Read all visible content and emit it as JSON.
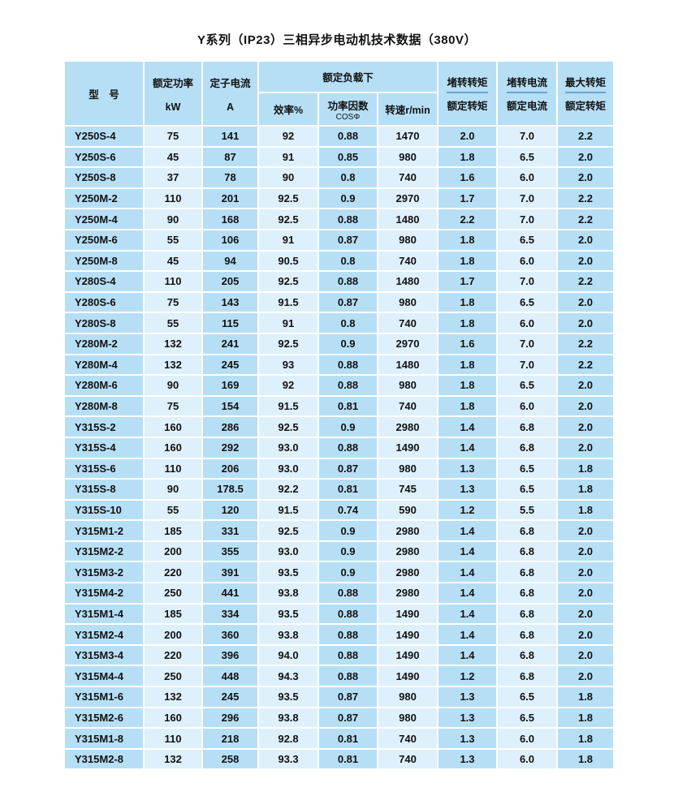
{
  "title": "Y系列（IP23）三相异步电动机技术数据（380V）",
  "header": {
    "model": "型　号",
    "power": "额定功率",
    "power_unit": "kW",
    "current": "定子电流",
    "current_unit": "A",
    "rated_load": "额定负载下",
    "efficiency": "效率%",
    "power_factor": "功率因数",
    "power_factor_sub": "COSΦ",
    "speed": "转速r/min",
    "locked_torque_top": "堵转转矩",
    "locked_torque_bottom": "额定转矩",
    "locked_current_top": "堵转电流",
    "locked_current_bottom": "额定电流",
    "max_torque_top": "最大转矩",
    "max_torque_bottom": "额定转矩"
  },
  "rows": [
    [
      "Y250S-4",
      "75",
      "141",
      "92",
      "0.88",
      "1470",
      "2.0",
      "7.0",
      "2.2"
    ],
    [
      "Y250S-6",
      "45",
      "87",
      "91",
      "0.85",
      "980",
      "1.8",
      "6.5",
      "2.0"
    ],
    [
      "Y250S-8",
      "37",
      "78",
      "90",
      "0.8",
      "740",
      "1.6",
      "6.0",
      "2.0"
    ],
    [
      "Y250M-2",
      "110",
      "201",
      "92.5",
      "0.9",
      "2970",
      "1.7",
      "7.0",
      "2.2"
    ],
    [
      "Y250M-4",
      "90",
      "168",
      "92.5",
      "0.88",
      "1480",
      "2.2",
      "7.0",
      "2.2"
    ],
    [
      "Y250M-6",
      "55",
      "106",
      "91",
      "0.87",
      "980",
      "1.8",
      "6.5",
      "2.0"
    ],
    [
      "Y250M-8",
      "45",
      "94",
      "90.5",
      "0.8",
      "740",
      "1.8",
      "6.0",
      "2.0"
    ],
    [
      "Y280S-4",
      "110",
      "205",
      "92.5",
      "0.88",
      "1480",
      "1.7",
      "7.0",
      "2.2"
    ],
    [
      "Y280S-6",
      "75",
      "143",
      "91.5",
      "0.87",
      "980",
      "1.8",
      "6.5",
      "2.0"
    ],
    [
      "Y280S-8",
      "55",
      "115",
      "91",
      "0.8",
      "740",
      "1.8",
      "6.0",
      "2.0"
    ],
    [
      "Y280M-2",
      "132",
      "241",
      "92.5",
      "0.9",
      "2970",
      "1.6",
      "7.0",
      "2.2"
    ],
    [
      "Y280M-4",
      "132",
      "245",
      "93",
      "0.88",
      "1480",
      "1.8",
      "7.0",
      "2.2"
    ],
    [
      "Y280M-6",
      "90",
      "169",
      "92",
      "0.88",
      "980",
      "1.8",
      "6.5",
      "2.0"
    ],
    [
      "Y280M-8",
      "75",
      "154",
      "91.5",
      "0.81",
      "740",
      "1.8",
      "6.0",
      "2.0"
    ],
    [
      "Y315S-2",
      "160",
      "286",
      "92.5",
      "0.9",
      "2980",
      "1.4",
      "6.8",
      "2.0"
    ],
    [
      "Y315S-4",
      "160",
      "292",
      "93.0",
      "0.88",
      "1490",
      "1.4",
      "6.8",
      "2.0"
    ],
    [
      "Y315S-6",
      "110",
      "206",
      "93.0",
      "0.87",
      "980",
      "1.3",
      "6.5",
      "1.8"
    ],
    [
      "Y315S-8",
      "90",
      "178.5",
      "92.2",
      "0.81",
      "745",
      "1.3",
      "6.5",
      "1.8"
    ],
    [
      "Y315S-10",
      "55",
      "120",
      "91.5",
      "0.74",
      "590",
      "1.2",
      "5.5",
      "1.8"
    ],
    [
      "Y315M1-2",
      "185",
      "331",
      "92.5",
      "0.9",
      "2980",
      "1.4",
      "6.8",
      "2.0"
    ],
    [
      "Y315M2-2",
      "200",
      "355",
      "93.0",
      "0.9",
      "2980",
      "1.4",
      "6.8",
      "2.0"
    ],
    [
      "Y315M3-2",
      "220",
      "391",
      "93.5",
      "0.9",
      "2980",
      "1.4",
      "6.8",
      "2.0"
    ],
    [
      "Y315M4-2",
      "250",
      "441",
      "93.8",
      "0.88",
      "2980",
      "1.4",
      "6.8",
      "2.0"
    ],
    [
      "Y315M1-4",
      "185",
      "334",
      "93.5",
      "0.88",
      "1490",
      "1.4",
      "6.8",
      "2.0"
    ],
    [
      "Y315M2-4",
      "200",
      "360",
      "93.8",
      "0.88",
      "1490",
      "1.4",
      "6.8",
      "2.0"
    ],
    [
      "Y315M3-4",
      "220",
      "396",
      "94.0",
      "0.88",
      "1490",
      "1.4",
      "6.8",
      "2.0"
    ],
    [
      "Y315M4-4",
      "250",
      "448",
      "94.3",
      "0.88",
      "1490",
      "1.2",
      "6.8",
      "2.0"
    ],
    [
      "Y315M1-6",
      "132",
      "245",
      "93.5",
      "0.87",
      "980",
      "1.3",
      "6.5",
      "1.8"
    ],
    [
      "Y315M2-6",
      "160",
      "296",
      "93.8",
      "0.87",
      "980",
      "1.3",
      "6.5",
      "1.8"
    ],
    [
      "Y315M1-8",
      "110",
      "218",
      "92.8",
      "0.81",
      "740",
      "1.3",
      "6.0",
      "1.8"
    ],
    [
      "Y315M2-8",
      "132",
      "258",
      "93.3",
      "0.81",
      "740",
      "1.3",
      "6.0",
      "1.8"
    ]
  ],
  "colors": {
    "dark_column": "#b6dff6",
    "light_column": "#ddf0fc",
    "divider": "#6aa6c8"
  }
}
